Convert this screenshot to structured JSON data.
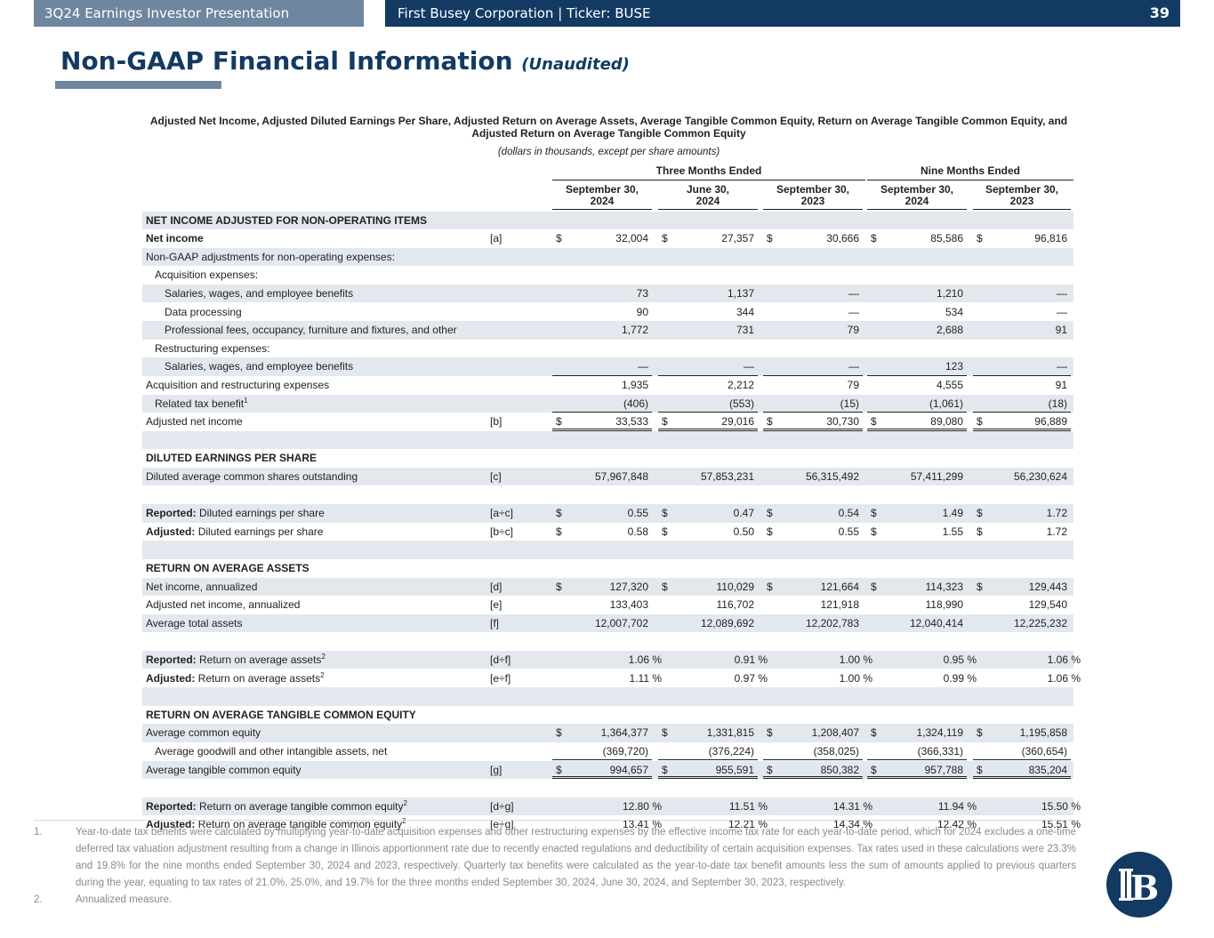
{
  "header": {
    "left_text": "3Q24 Earnings Investor Presentation",
    "right_text": "First Busey Corporation  |  Ticker: BUSE",
    "page_number": "39"
  },
  "title": {
    "main": "Non-GAAP Financial Information",
    "sub": "(Unaudited)"
  },
  "table_heading": "Adjusted Net Income, Adjusted Diluted Earnings Per Share, Adjusted Return on Average Assets, Average Tangible Common Equity, Return on Average Tangible Common Equity, and Adjusted Return on Average Tangible Common Equity",
  "table_subheading": "(dollars in thousands, except per share amounts)",
  "groups": [
    "Three Months Ended",
    "Nine Months Ended"
  ],
  "columns": [
    [
      "September 30,",
      "2024"
    ],
    [
      "June 30,",
      "2024"
    ],
    [
      "September 30,",
      "2023"
    ],
    [
      "September 30,",
      "2024"
    ],
    [
      "September 30,",
      "2023"
    ]
  ],
  "rows": [
    {
      "label": "NET INCOME ADJUSTED FOR NON-OPERATING ITEMS",
      "type": "section",
      "shade": true
    },
    {
      "label": "Net income",
      "bold": true,
      "ref": "[a]",
      "dollar": true,
      "values": [
        "32,004",
        "27,357",
        "30,666",
        "85,586",
        "96,816"
      ]
    },
    {
      "label": "Non-GAAP adjustments for non-operating expenses:",
      "shade": true
    },
    {
      "label": "Acquisition expenses:",
      "indent": 1
    },
    {
      "label": "Salaries, wages, and employee benefits",
      "indent": 2,
      "shade": true,
      "values": [
        "73",
        "1,137",
        "—",
        "1,210",
        "—"
      ]
    },
    {
      "label": "Data processing",
      "indent": 2,
      "values": [
        "90",
        "344",
        "—",
        "534",
        "—"
      ]
    },
    {
      "label": "Professional fees, occupancy, furniture and fixtures, and other",
      "indent": 2,
      "shade": true,
      "values": [
        "1,772",
        "731",
        "79",
        "2,688",
        "91"
      ]
    },
    {
      "label": "Restructuring expenses:",
      "indent": 1
    },
    {
      "label": "Salaries, wages, and employee benefits",
      "indent": 2,
      "shade": true,
      "values": [
        "—",
        "—",
        "—",
        "123",
        "—"
      ],
      "underline": true
    },
    {
      "label": "Acquisition and restructuring expenses",
      "values": [
        "1,935",
        "2,212",
        "79",
        "4,555",
        "91"
      ]
    },
    {
      "label": "Related tax benefit",
      "sup": "1",
      "indent": 1,
      "shade": true,
      "values": [
        "(406)",
        "(553)",
        "(15)",
        "(1,061)",
        "(18)"
      ],
      "underline": true
    },
    {
      "label": "Adjusted net income",
      "ref": "[b]",
      "dollar": true,
      "values": [
        "33,533",
        "29,016",
        "30,730",
        "89,080",
        "96,889"
      ],
      "double": true
    },
    {
      "type": "spacer",
      "shade": true
    },
    {
      "label": "DILUTED EARNINGS PER SHARE",
      "type": "section"
    },
    {
      "label": "Diluted average common shares outstanding",
      "ref": "[c]",
      "shade": true,
      "values": [
        "57,967,848",
        "57,853,231",
        "56,315,492",
        "57,411,299",
        "56,230,624"
      ]
    },
    {
      "type": "spacer"
    },
    {
      "label": "Diluted earnings per share",
      "prefix": "Reported:",
      "ref": "[a÷c]",
      "dollar": true,
      "shade": true,
      "values": [
        "0.55",
        "0.47",
        "0.54",
        "1.49",
        "1.72"
      ]
    },
    {
      "label": "Diluted earnings per share",
      "prefix": "Adjusted:",
      "ref": "[b÷c]",
      "dollar": true,
      "values": [
        "0.58",
        "0.50",
        "0.55",
        "1.55",
        "1.72"
      ]
    },
    {
      "type": "spacer",
      "shade": true
    },
    {
      "label": "RETURN ON AVERAGE ASSETS",
      "type": "section"
    },
    {
      "label": "Net income, annualized",
      "ref": "[d]",
      "dollar": true,
      "shade": true,
      "values": [
        "127,320",
        "110,029",
        "121,664",
        "114,323",
        "129,443"
      ]
    },
    {
      "label": "Adjusted net income, annualized",
      "ref": "[e]",
      "values": [
        "133,403",
        "116,702",
        "121,918",
        "118,990",
        "129,540"
      ]
    },
    {
      "label": "Average total assets",
      "ref": "[f]",
      "shade": true,
      "values": [
        "12,007,702",
        "12,089,692",
        "12,202,783",
        "12,040,414",
        "12,225,232"
      ]
    },
    {
      "type": "spacer"
    },
    {
      "label": "Return on average assets",
      "prefix": "Reported:",
      "sup": "2",
      "ref": "[d÷f]",
      "shade": true,
      "pct": true,
      "values": [
        "1.06 %",
        "0.91 %",
        "1.00 %",
        "0.95 %",
        "1.06 %"
      ]
    },
    {
      "label": "Return on average assets",
      "prefix": "Adjusted:",
      "sup": "2",
      "ref": "[e÷f]",
      "pct": true,
      "values": [
        "1.11 %",
        "0.97 %",
        "1.00 %",
        "0.99 %",
        "1.06 %"
      ]
    },
    {
      "type": "spacer",
      "shade": true
    },
    {
      "label": "RETURN ON AVERAGE TANGIBLE COMMON EQUITY",
      "type": "section"
    },
    {
      "label": "Average common equity",
      "dollar": true,
      "shade": true,
      "values": [
        "1,364,377",
        "1,331,815",
        "1,208,407",
        "1,324,119",
        "1,195,858"
      ]
    },
    {
      "label": "Average goodwill and other intangible assets, net",
      "indent": 1,
      "values": [
        "(369,720)",
        "(376,224)",
        "(358,025)",
        "(366,331)",
        "(360,654)"
      ],
      "underline": true
    },
    {
      "label": "Average tangible common equity",
      "ref": "[g]",
      "dollar": true,
      "shade": true,
      "values": [
        "994,657",
        "955,591",
        "850,382",
        "957,788",
        "835,204"
      ],
      "double": true
    },
    {
      "type": "spacer"
    },
    {
      "label": "Return on average tangible common equity",
      "prefix": "Reported:",
      "sup": "2",
      "ref": "[d÷g]",
      "shade": true,
      "pct": true,
      "values": [
        "12.80 %",
        "11.51 %",
        "14.31 %",
        "11.94 %",
        "15.50 %"
      ]
    },
    {
      "label": "Return on average tangible common equity",
      "prefix": "Adjusted:",
      "sup": "2",
      "ref": "[e÷g]",
      "pct": true,
      "values": [
        "13.41 %",
        "12.21 %",
        "14.34 %",
        "12.42 %",
        "15.51 %"
      ]
    }
  ],
  "footnotes": [
    {
      "num": "1.",
      "text": "Year-to-date tax benefits were calculated by multiplying year-to-date acquisition expenses and other restructuring expenses by the effective income tax rate for each year-to-date period, which for 2024 excludes a one-time deferred tax valuation adjustment resulting from a change in Illinois apportionment rate due to recently enacted regulations and deductibility of certain acquisition expenses. Tax rates used in these calculations were 23.3% and 19.8% for the nine months ended September 30, 2024 and 2023, respectively. Quarterly tax benefits were calculated as the year-to-date tax benefit amounts less the sum of amounts applied to previous quarters during the year, equating to tax rates of 21.0%, 25.0%, and 19.7% for the three months ended September 30, 2024, June 30, 2024, and September 30, 2023, respectively."
    },
    {
      "num": "2.",
      "text": "Annualized measure."
    }
  ],
  "logo": {
    "letters": "B",
    "color": "#133a63",
    "icon": "first-busey-logo-icon"
  }
}
